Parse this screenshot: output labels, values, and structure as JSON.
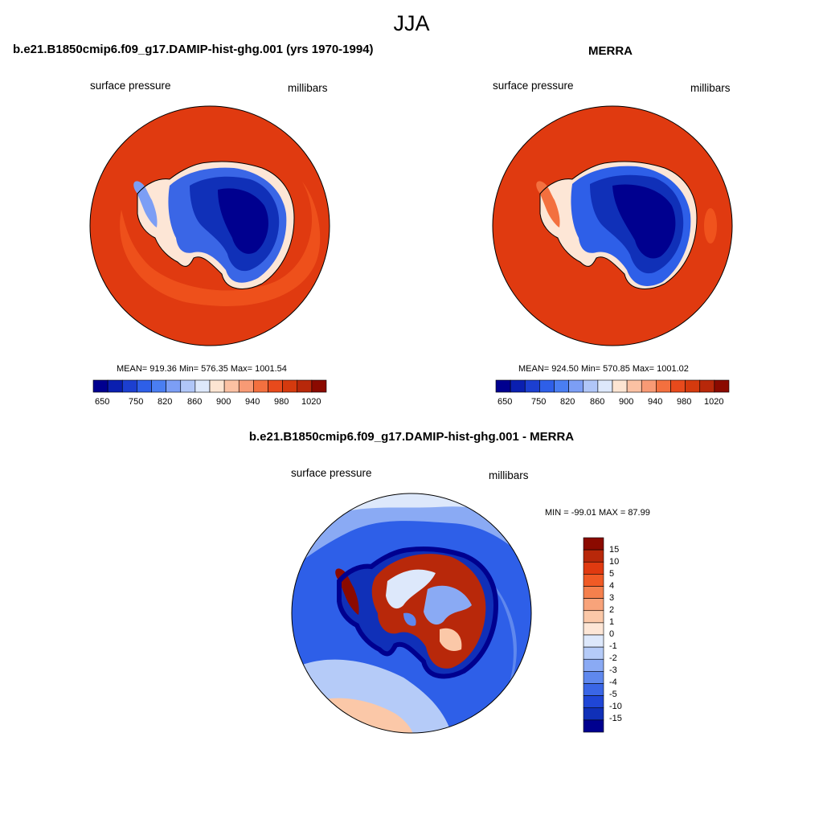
{
  "figure_title": "JJA",
  "panels": [
    {
      "title": "b.e21.B1850cmip6.f09_g17.DAMIP-hist-ghg.001 (yrs 1970-1994)",
      "left_label": "surface pressure",
      "right_label": "millibars",
      "stats": "MEAN= 919.36  Min= 576.35  Max= 1001.54",
      "mean": 919.36,
      "min": 576.35,
      "max": 1001.54
    },
    {
      "title": "MERRA",
      "left_label": "surface pressure",
      "right_label": "millibars",
      "stats": "MEAN= 924.50  Min= 570.85  Max= 1001.02",
      "mean": 924.5,
      "min": 570.85,
      "max": 1001.02
    },
    {
      "title": "b.e21.B1850cmip6.f09_g17.DAMIP-hist-ghg.001 - MERRA",
      "left_label": "surface pressure",
      "right_label": "millibars",
      "stats": "MIN = -99.01 MAX =  87.99",
      "min": -99.01,
      "max": 87.99
    }
  ],
  "colorbar_abs": {
    "tick_labels": [
      "650",
      "750",
      "820",
      "860",
      "900",
      "940",
      "980",
      "1020"
    ],
    "colors": [
      "#00008f",
      "#0a1fb0",
      "#1c3fd0",
      "#2e5fe8",
      "#4a7ef2",
      "#7c9ef5",
      "#b0c6f8",
      "#dde8fb",
      "#fde5d2",
      "#fbc1a3",
      "#f89a75",
      "#f3703f",
      "#e84a1c",
      "#d53a0e",
      "#b8280a",
      "#8b0a00"
    ]
  },
  "colorbar_diff": {
    "tick_labels": [
      "15",
      "10",
      "5",
      "4",
      "3",
      "2",
      "1",
      "0",
      "-1",
      "-2",
      "-3",
      "-4",
      "-5",
      "-10",
      "-15"
    ],
    "colors": [
      "#8b0a00",
      "#b8280a",
      "#e03a10",
      "#f05a25",
      "#f5804d",
      "#f8a37a",
      "#fbc8a8",
      "#fde6d6",
      "#dde8fb",
      "#b5cbf8",
      "#8aaaf4",
      "#5f88ee",
      "#3a66e6",
      "#1f46d6",
      "#1030b8",
      "#00008f"
    ]
  }
}
